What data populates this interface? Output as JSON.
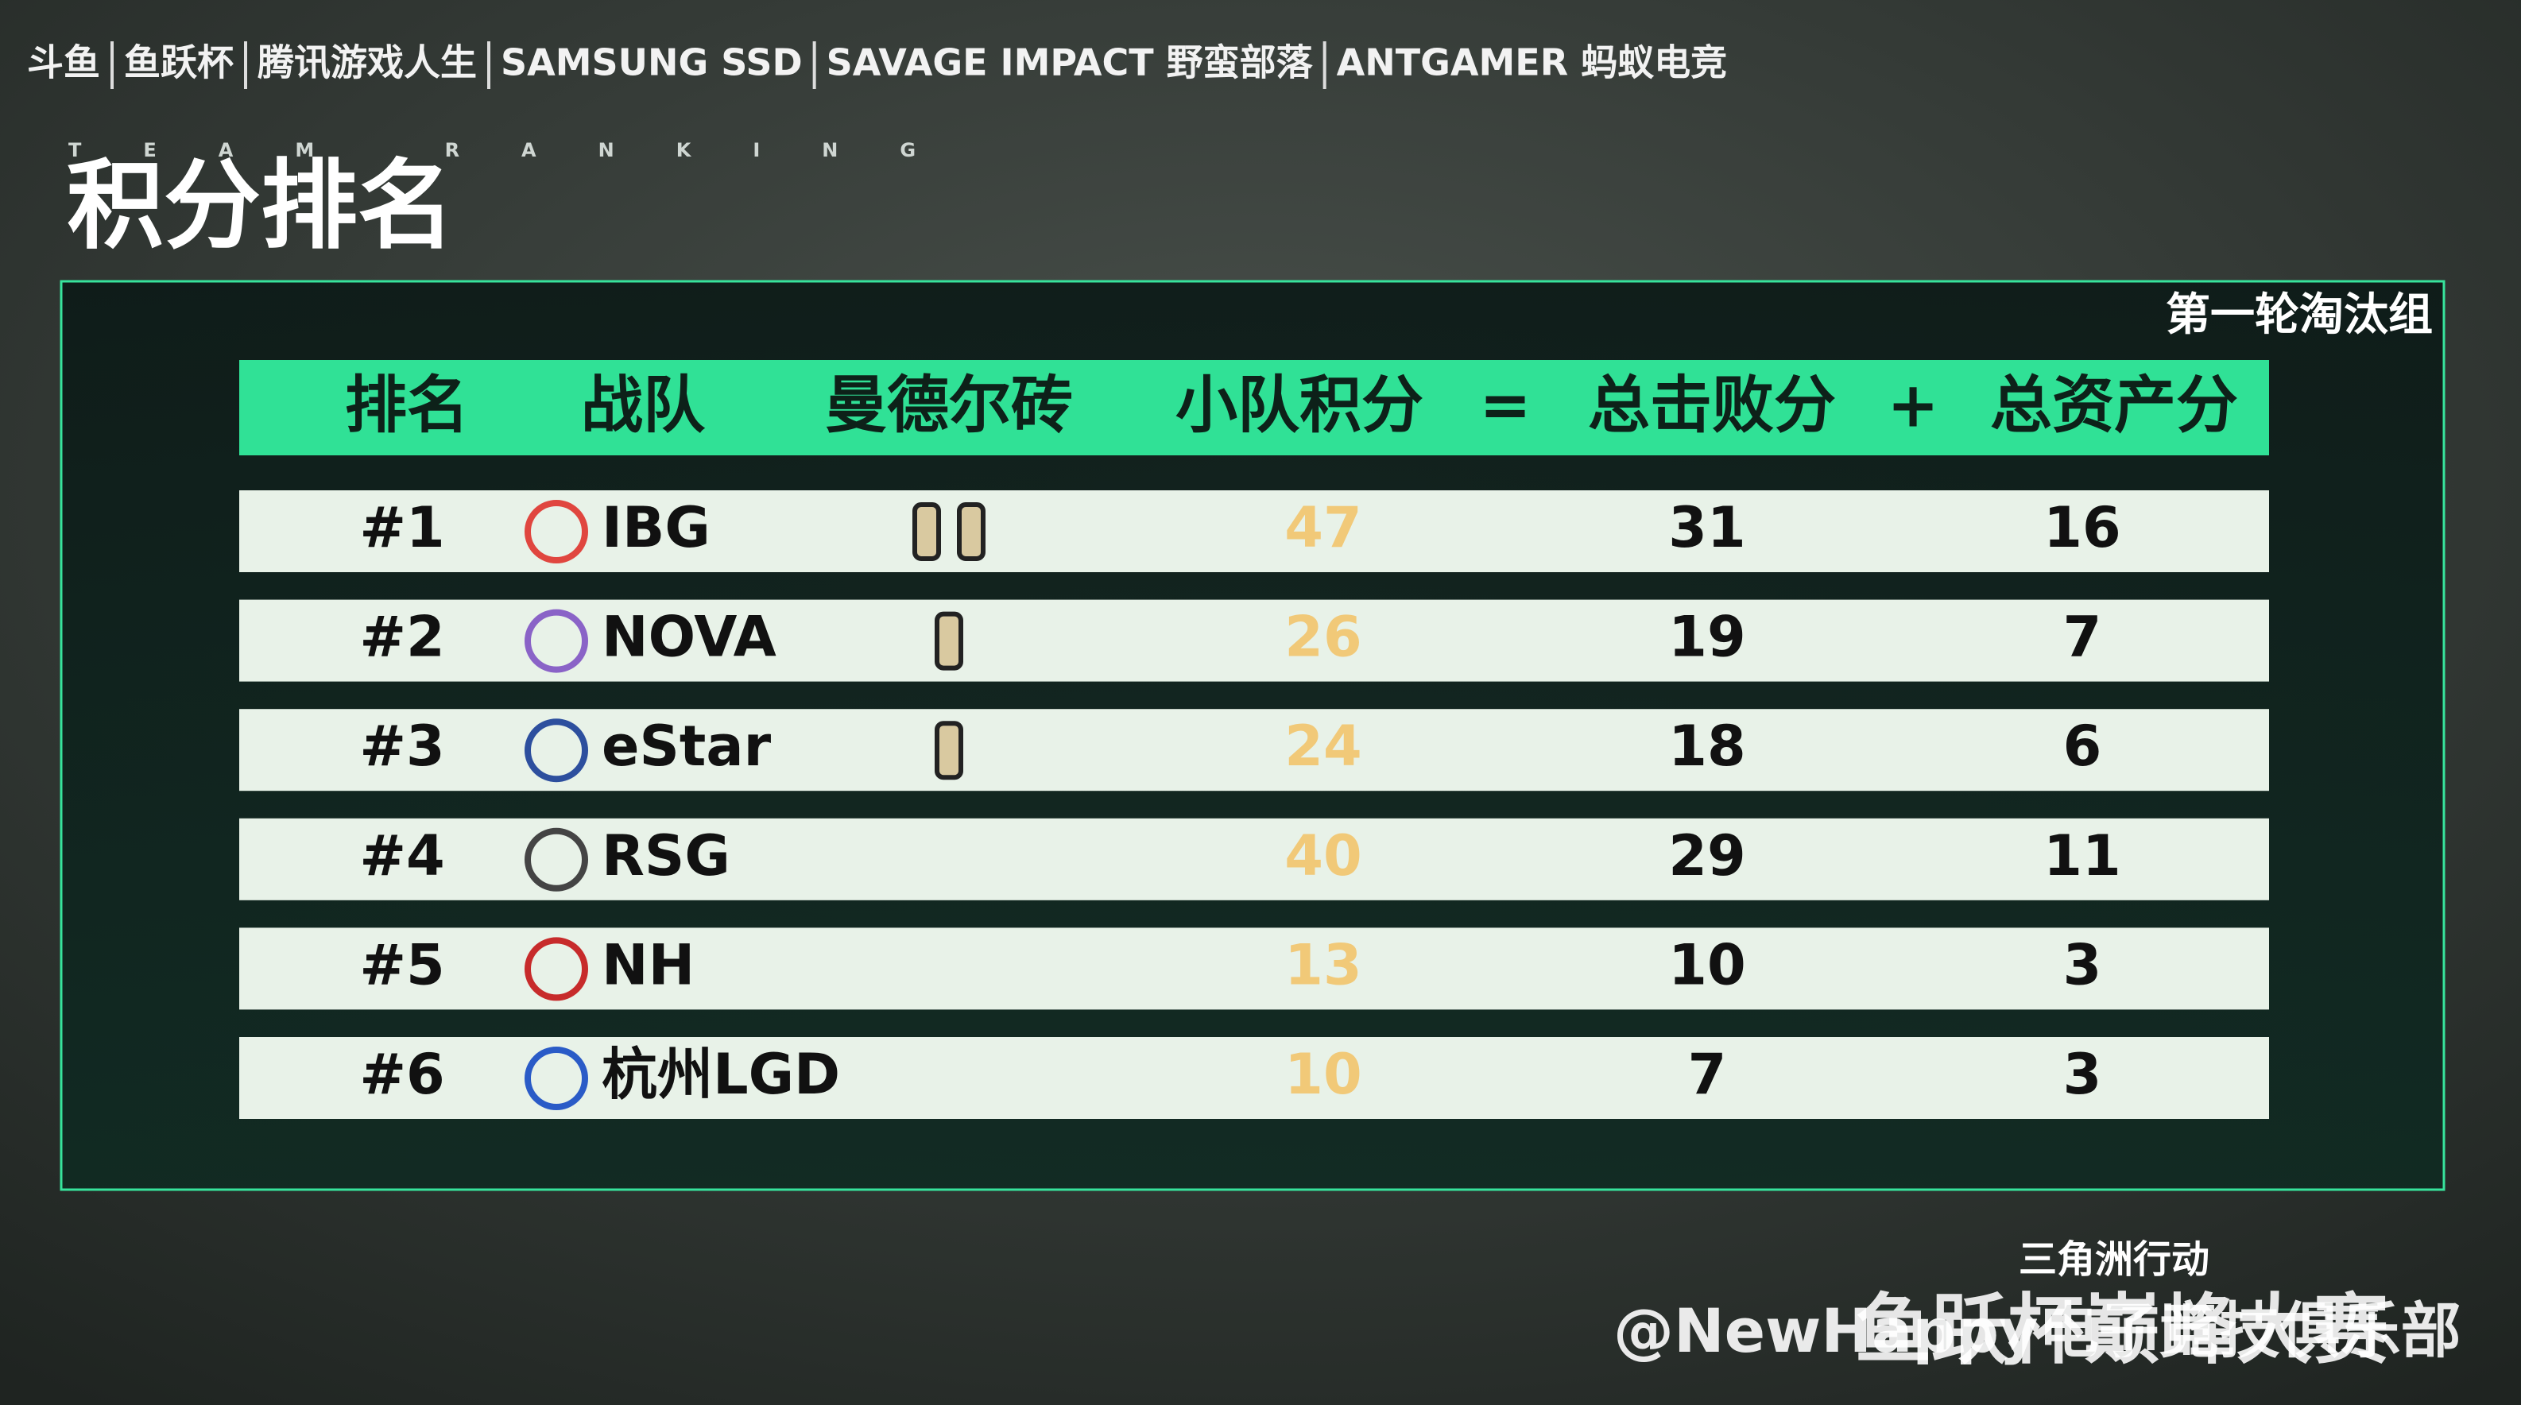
{
  "sponsors": [
    "斗鱼",
    "鱼跃杯",
    "腾讯游戏人生",
    "SAMSUNG SSD",
    "SAVAGE IMPACT 野蛮部落",
    "ANTGAMER 蚂蚁电竞"
  ],
  "header": {
    "kicker": "TEAM RANKING",
    "title": "积分排名"
  },
  "table": {
    "group": "第一轮淘汰组",
    "columns": [
      "排名",
      "战队",
      "曼德尔砖",
      "小队积分",
      "=",
      "总击败分",
      "+",
      "总资产分"
    ],
    "rows": [
      {
        "rank": "#1",
        "team": "IBG",
        "bricks": 2,
        "points": 47,
        "kills": 31,
        "assets": 16
      },
      {
        "rank": "#2",
        "team": "NOVA",
        "bricks": 1,
        "points": 26,
        "kills": 19,
        "assets": 7
      },
      {
        "rank": "#3",
        "team": "eStar",
        "bricks": 1,
        "points": 24,
        "kills": 18,
        "assets": 6
      },
      {
        "rank": "#4",
        "team": "RSG",
        "bricks": 0,
        "points": 40,
        "kills": 29,
        "assets": 11
      },
      {
        "rank": "#5",
        "team": "NH",
        "bricks": 0,
        "points": 13,
        "kills": 10,
        "assets": 3
      },
      {
        "rank": "#6",
        "team": "杭州LGD",
        "bricks": 0,
        "points": 10,
        "kills": 7,
        "assets": 3
      }
    ]
  },
  "footer": {
    "game": "三角洲行动",
    "event": "鱼跃杯巅峰大赛",
    "watermark": "@NewHappy电子竞技俱乐部"
  }
}
